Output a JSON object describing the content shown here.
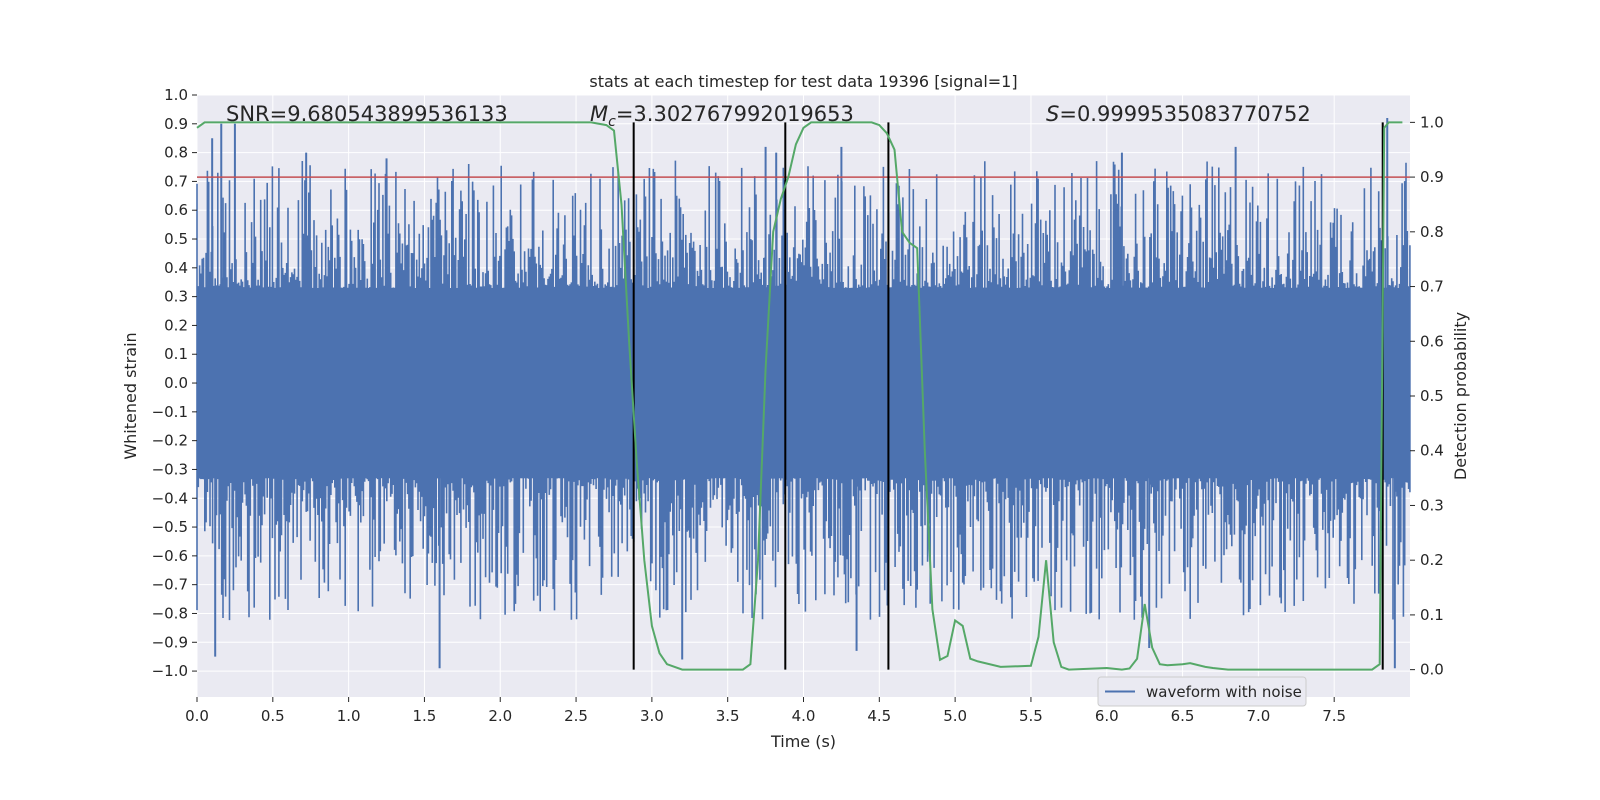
{
  "chart_data": {
    "type": "line",
    "title": "stats at each timestep for test data 19396 [signal=1]",
    "xlabel": "Time (s)",
    "ylabel": "Whitened strain",
    "y2label": "Detection probability",
    "xlim": [
      0.0,
      8.0
    ],
    "ylim": [
      -1.09,
      1.0
    ],
    "y2lim": [
      -0.05,
      1.05
    ],
    "x_ticks": [
      "0.0",
      "0.5",
      "1.0",
      "1.5",
      "2.0",
      "2.5",
      "3.0",
      "3.5",
      "4.0",
      "4.5",
      "5.0",
      "5.5",
      "6.0",
      "6.5",
      "7.0",
      "7.5"
    ],
    "y_ticks": [
      "1.0",
      "0.9",
      "0.8",
      "0.7",
      "0.6",
      "0.5",
      "0.4",
      "0.3",
      "0.2",
      "0.1",
      "0.0",
      "−0.1",
      "−0.2",
      "−0.3",
      "−0.4",
      "−0.5",
      "−0.6",
      "−0.7",
      "−0.8",
      "−0.9",
      "−1.0"
    ],
    "y2_ticks": [
      "1.0",
      "0.9",
      "0.8",
      "0.7",
      "0.6",
      "0.5",
      "0.4",
      "0.3",
      "0.2",
      "0.1",
      "0.0"
    ],
    "annotations": {
      "snr": "SNR=9.680543899536133",
      "mc_symbol": "M",
      "mc_sub": "c",
      "mc_value": "=3.302767992019653",
      "s_symbol": "S",
      "s_value": "=0.9999535083770752"
    },
    "legend": {
      "label": "waveform with noise",
      "position": "lower right"
    },
    "threshold": {
      "axis": "y2",
      "value": 0.9,
      "color": "#c44e52"
    },
    "vlines": [
      2.88,
      3.88,
      4.56,
      7.82
    ],
    "vline_range": [
      0.0,
      1.0
    ],
    "series": [
      {
        "name": "waveform with noise",
        "axis": "y",
        "color": "#4c72b0",
        "core_amplitude": 0.33,
        "peak_max": 0.92,
        "trough_min": -0.99,
        "spikes": [
          {
            "x": 0.1,
            "v": 0.85
          },
          {
            "x": 0.16,
            "v": 0.9
          },
          {
            "x": 0.25,
            "v": 0.9
          },
          {
            "x": 0.72,
            "v": 0.8
          },
          {
            "x": 1.25,
            "v": 0.78
          },
          {
            "x": 3.75,
            "v": 0.82
          },
          {
            "x": 3.82,
            "v": 0.8
          },
          {
            "x": 4.25,
            "v": 0.82
          },
          {
            "x": 6.1,
            "v": 0.8
          },
          {
            "x": 6.85,
            "v": 0.82
          },
          {
            "x": 7.85,
            "v": 0.92
          },
          {
            "x": 0.12,
            "v": -0.95
          },
          {
            "x": 1.6,
            "v": -0.99
          },
          {
            "x": 3.2,
            "v": -0.96
          },
          {
            "x": 4.35,
            "v": -0.93
          },
          {
            "x": 6.28,
            "v": -0.92
          },
          {
            "x": 7.9,
            "v": -0.99
          }
        ]
      },
      {
        "name": "detection probability",
        "axis": "y2",
        "color": "#55a868",
        "x": [
          0.0,
          0.05,
          0.5,
          1.0,
          1.5,
          2.0,
          2.5,
          2.6,
          2.7,
          2.75,
          2.8,
          2.85,
          2.9,
          2.95,
          3.0,
          3.05,
          3.1,
          3.2,
          3.5,
          3.6,
          3.65,
          3.7,
          3.75,
          3.8,
          3.85,
          3.9,
          3.95,
          4.0,
          4.05,
          4.1,
          4.45,
          4.5,
          4.55,
          4.6,
          4.65,
          4.7,
          4.75,
          4.8,
          4.85,
          4.9,
          4.95,
          5.0,
          5.05,
          5.1,
          5.15,
          5.3,
          5.5,
          5.55,
          5.6,
          5.65,
          5.7,
          5.75,
          6.0,
          6.1,
          6.15,
          6.2,
          6.25,
          6.3,
          6.35,
          6.4,
          6.5,
          6.55,
          6.65,
          6.7,
          6.8,
          7.0,
          7.5,
          7.75,
          7.8,
          7.83,
          7.86,
          7.9,
          7.95
        ],
        "values": [
          0.99,
          1.0,
          1.0,
          1.0,
          1.0,
          1.0,
          1.0,
          1.0,
          0.995,
          0.985,
          0.85,
          0.6,
          0.38,
          0.2,
          0.08,
          0.03,
          0.01,
          0.0,
          0.0,
          0.0,
          0.01,
          0.2,
          0.55,
          0.8,
          0.86,
          0.9,
          0.96,
          0.99,
          1.0,
          1.0,
          1.0,
          0.995,
          0.98,
          0.95,
          0.8,
          0.78,
          0.77,
          0.4,
          0.11,
          0.018,
          0.025,
          0.09,
          0.08,
          0.02,
          0.015,
          0.005,
          0.007,
          0.06,
          0.2,
          0.05,
          0.005,
          0.0,
          0.003,
          0.0,
          0.002,
          0.02,
          0.12,
          0.04,
          0.01,
          0.008,
          0.01,
          0.012,
          0.005,
          0.003,
          0.0,
          0.0,
          0.0,
          0.0,
          0.01,
          0.99,
          1.0,
          1.0,
          1.0
        ]
      }
    ]
  }
}
